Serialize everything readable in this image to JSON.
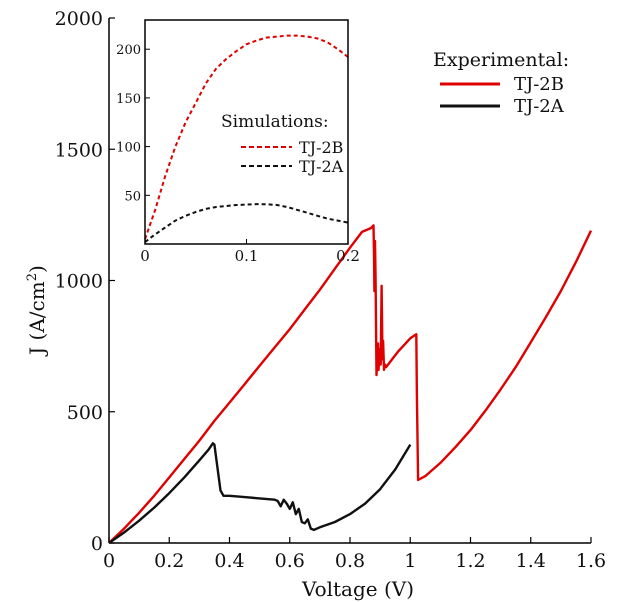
{
  "chart_data": [
    {
      "type": "line",
      "title": "",
      "xlabel": "Voltage (V)",
      "ylabel": "J (A/cm",
      "ylabel_sup": "2",
      "ylabel_close": ")",
      "xlim": [
        0,
        1.6
      ],
      "ylim": [
        0,
        2000
      ],
      "grid": false,
      "x_ticks": [
        "0",
        "0.2",
        "0.4",
        "0.6",
        "0.8",
        "1",
        "1.2",
        "1.4",
        "1.6"
      ],
      "y_ticks": [
        "0",
        "500",
        "1000",
        "1500",
        "2000"
      ],
      "legend": {
        "title": "Experimental:",
        "placement": "top-right",
        "entries": [
          "TJ-2B",
          "TJ-2A"
        ]
      },
      "series": [
        {
          "name": "TJ-2B",
          "color": "#e00000",
          "style": "solid",
          "x": [
            0,
            0.05,
            0.1,
            0.15,
            0.2,
            0.25,
            0.3,
            0.35,
            0.4,
            0.45,
            0.5,
            0.55,
            0.6,
            0.65,
            0.7,
            0.75,
            0.8,
            0.84,
            0.87,
            0.878,
            0.88,
            0.881,
            0.883,
            0.885,
            0.888,
            0.89,
            0.893,
            0.895,
            0.897,
            0.9,
            0.902,
            0.905,
            0.908,
            0.91,
            0.913,
            0.916,
            0.92,
            0.96,
            1.0,
            1.02,
            1.022,
            1.026,
            1.05,
            1.1,
            1.15,
            1.2,
            1.25,
            1.3,
            1.35,
            1.4,
            1.45,
            1.5,
            1.55,
            1.6
          ],
          "y": [
            0,
            55,
            115,
            180,
            250,
            320,
            390,
            465,
            535,
            605,
            675,
            745,
            815,
            890,
            965,
            1045,
            1125,
            1185,
            1200,
            1210,
            1080,
            960,
            1150,
            1000,
            640,
            700,
            760,
            660,
            740,
            720,
            680,
            980,
            700,
            770,
            660,
            680,
            670,
            730,
            780,
            795,
            560,
            240,
            255,
            305,
            365,
            430,
            505,
            585,
            670,
            765,
            860,
            960,
            1070,
            1190
          ]
        },
        {
          "name": "TJ-2A",
          "color": "#111111",
          "style": "solid",
          "x": [
            0,
            0.05,
            0.1,
            0.15,
            0.2,
            0.25,
            0.3,
            0.33,
            0.345,
            0.35,
            0.37,
            0.38,
            0.4,
            0.45,
            0.5,
            0.55,
            0.56,
            0.57,
            0.58,
            0.59,
            0.6,
            0.61,
            0.62,
            0.63,
            0.64,
            0.65,
            0.66,
            0.67,
            0.68,
            0.7,
            0.75,
            0.8,
            0.85,
            0.9,
            0.95,
            1.0
          ],
          "y": [
            0,
            40,
            85,
            135,
            190,
            250,
            315,
            355,
            380,
            375,
            200,
            180,
            180,
            175,
            170,
            165,
            160,
            140,
            165,
            150,
            130,
            155,
            110,
            130,
            80,
            75,
            90,
            55,
            50,
            60,
            80,
            110,
            150,
            205,
            280,
            375
          ]
        }
      ]
    },
    {
      "type": "line",
      "title": "",
      "xlabel": "",
      "ylabel": "",
      "xlim": [
        0,
        0.2
      ],
      "ylim": [
        0,
        230
      ],
      "grid": false,
      "x_ticks": [
        "0",
        "0.1",
        "0.2"
      ],
      "y_ticks": [
        "50",
        "100",
        "150",
        "200"
      ],
      "legend": {
        "title": "Simulations:",
        "placement": "center-right",
        "entries": [
          "TJ-2B",
          "TJ-2A"
        ]
      },
      "series": [
        {
          "name": "TJ-2B",
          "color": "#e00000",
          "style": "dashed",
          "x": [
            0,
            0.01,
            0.02,
            0.03,
            0.04,
            0.05,
            0.06,
            0.07,
            0.08,
            0.09,
            0.1,
            0.11,
            0.12,
            0.13,
            0.14,
            0.15,
            0.16,
            0.17,
            0.18,
            0.19,
            0.2
          ],
          "y": [
            5,
            35,
            70,
            100,
            125,
            145,
            165,
            180,
            190,
            198,
            205,
            209,
            212,
            213,
            214,
            214,
            213,
            211,
            207,
            200,
            192
          ]
        },
        {
          "name": "TJ-2A",
          "color": "#111111",
          "style": "dashed",
          "x": [
            0,
            0.01,
            0.02,
            0.03,
            0.04,
            0.05,
            0.06,
            0.07,
            0.08,
            0.09,
            0.1,
            0.11,
            0.12,
            0.13,
            0.14,
            0.15,
            0.16,
            0.17,
            0.18,
            0.19,
            0.2
          ],
          "y": [
            2,
            10,
            17,
            24,
            29,
            33,
            36,
            38,
            39,
            40,
            40.5,
            41,
            40.8,
            40,
            38,
            35,
            32,
            29,
            26,
            24,
            22
          ]
        }
      ]
    }
  ]
}
